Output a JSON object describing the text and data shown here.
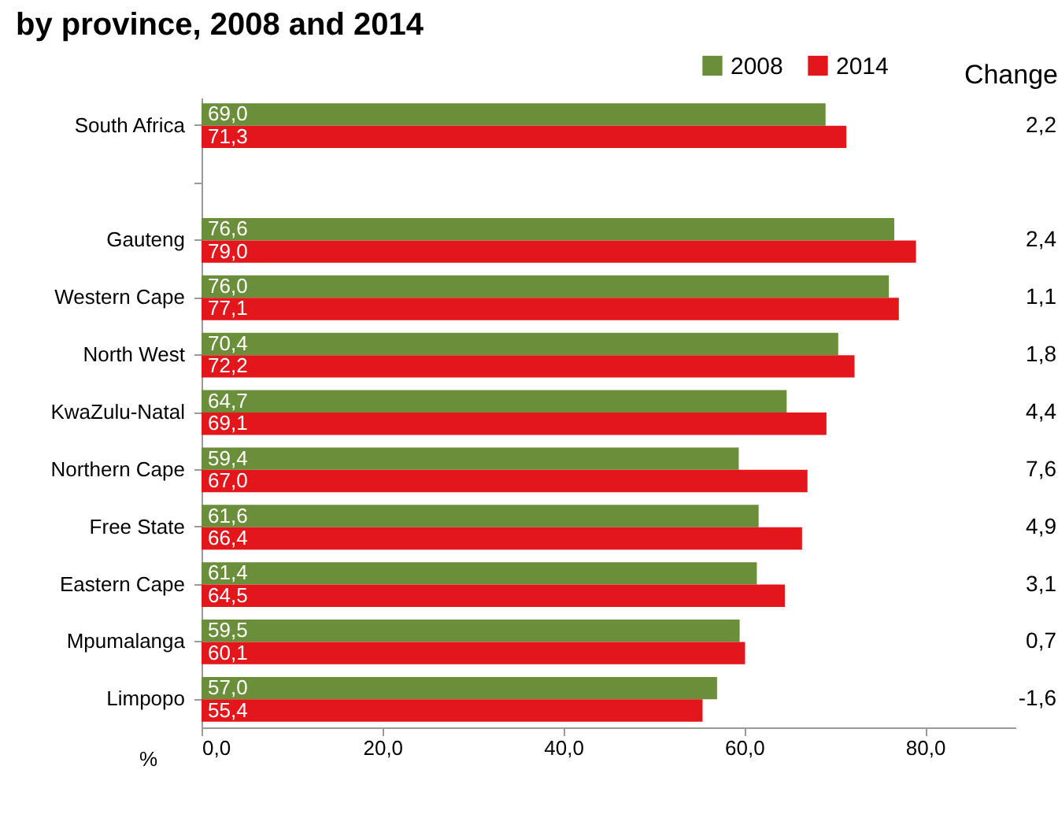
{
  "chart_data": {
    "type": "bar",
    "orientation": "horizontal",
    "title": "by province, 2008 and 2014",
    "xlabel": "%",
    "categories": [
      "South Africa",
      null,
      "Gauteng",
      "Western Cape",
      "North West",
      "KwaZulu-Natal",
      "Northern Cape",
      "Free State",
      "Eastern Cape",
      "Mpumalanga",
      "Limpopo"
    ],
    "series": [
      {
        "name": "2008",
        "color": "#6b8e3a",
        "values": [
          69.0,
          null,
          76.6,
          76.0,
          70.4,
          64.7,
          59.4,
          61.6,
          61.4,
          59.5,
          57.0
        ],
        "value_labels": [
          "69,0",
          null,
          "76,6",
          "76,0",
          "70,4",
          "64,7",
          "59,4",
          "61,6",
          "61,4",
          "59,5",
          "57,0"
        ]
      },
      {
        "name": "2014",
        "color": "#e3171b",
        "values": [
          71.3,
          null,
          79.0,
          77.1,
          72.2,
          69.1,
          67.0,
          66.4,
          64.5,
          60.1,
          55.4
        ],
        "value_labels": [
          "71,3",
          null,
          "79,0",
          "77,1",
          "72,2",
          "69,1",
          "67,0",
          "66,4",
          "64,5",
          "60,1",
          "55,4"
        ]
      }
    ],
    "xlim": [
      0,
      90
    ],
    "xticks": [
      {
        "value": 0,
        "label": "0,0"
      },
      {
        "value": 20,
        "label": "20,0"
      },
      {
        "value": 40,
        "label": "40,0"
      },
      {
        "value": 60,
        "label": "60,0"
      },
      {
        "value": 80,
        "label": "80,0"
      }
    ],
    "legend": "top right",
    "annotations": [
      "Change",
      "2,2",
      "2,4",
      "1,1",
      "1,8",
      "4,4",
      "7,6",
      "4,9",
      "3,1",
      "0,7",
      "-1,6"
    ]
  }
}
